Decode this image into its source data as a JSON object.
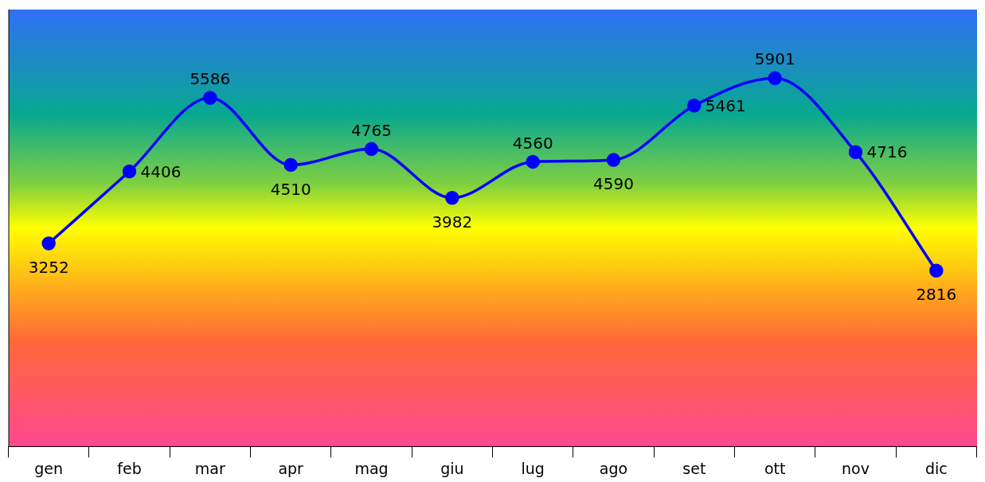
{
  "chart_data": {
    "type": "line",
    "categories": [
      "gen",
      "feb",
      "mar",
      "apr",
      "mag",
      "giu",
      "lug",
      "ago",
      "set",
      "ott",
      "nov",
      "dic"
    ],
    "series": [
      {
        "color": "#0000ff",
        "values": [
          3252,
          4406,
          5586,
          4510,
          4765,
          3982,
          4560,
          4590,
          5461,
          5901,
          4716,
          2816
        ]
      }
    ],
    "ylim": [
      0,
      7000
    ],
    "data_labels": true,
    "marker": "circle",
    "line_style": "solid",
    "grid": false,
    "legend": false,
    "tick_labels": "x"
  }
}
